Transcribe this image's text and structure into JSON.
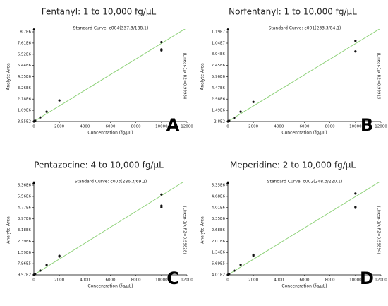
{
  "chart_data": [
    {
      "type": "scatter",
      "title": "Fentanyl: 1 to 10,000 fg/µL",
      "subtitle": "Standard Curve: c004(337.3/188.1)",
      "x_label": "Concentration (fg/µL)",
      "y_label": "Analyte Area",
      "annotation": "(Linear-1/x R2=0.99988)",
      "panel": "A",
      "xlim": [
        0,
        12000
      ],
      "xticks": [
        0,
        2000,
        4000,
        6000,
        8000,
        10000,
        12000
      ],
      "ylim": [
        355,
        8700000
      ],
      "yticks": [
        {
          "value": 355,
          "label": "3.55E2"
        },
        {
          "value": 1090000,
          "label": "1.09E6"
        },
        {
          "value": 2180000,
          "label": "2.18E6"
        },
        {
          "value": 3260000,
          "label": "3.26E6"
        },
        {
          "value": 4350000,
          "label": "4.35E6"
        },
        {
          "value": 5440000,
          "label": "5.44E6"
        },
        {
          "value": 6520000,
          "label": "6.52E6"
        },
        {
          "value": 7610000,
          "label": "7.61E6"
        },
        {
          "value": 8700000,
          "label": "8.7E6"
        }
      ],
      "points": {
        "color": "#111111",
        "x": [
          10,
          50,
          100,
          500,
          1000,
          2000,
          10000,
          10000,
          10000
        ],
        "y": [
          8000,
          40000,
          80000,
          400000,
          950000,
          2050000,
          7700000,
          7000000,
          6900000
        ]
      },
      "fit": {
        "color": "#8fd27a",
        "x": [
          0,
          12000
        ],
        "y": [
          0,
          9100000
        ]
      }
    },
    {
      "type": "scatter",
      "title": "Norfentanyl: 1 to 10,000 fg/µL",
      "subtitle": "Standard Curve: c001(233.3/84.1)",
      "x_label": "Concentration (fg/µL)",
      "y_label": "Analyte Area",
      "annotation": "(Linear-1/x R2=0.99915)",
      "panel": "B",
      "xlim": [
        0,
        12000
      ],
      "xticks": [
        0,
        2000,
        4000,
        6000,
        8000,
        10000,
        12000
      ],
      "ylim": [
        280,
        11900000
      ],
      "yticks": [
        {
          "value": 280,
          "label": "2.8E2"
        },
        {
          "value": 1490000,
          "label": "1.49E6"
        },
        {
          "value": 2980000,
          "label": "2.98E6"
        },
        {
          "value": 4470000,
          "label": "4.47E6"
        },
        {
          "value": 5960000,
          "label": "5.96E6"
        },
        {
          "value": 7450000,
          "label": "7.45E6"
        },
        {
          "value": 8940000,
          "label": "8.94E6"
        },
        {
          "value": 10400000,
          "label": "1.04E7"
        },
        {
          "value": 11900000,
          "label": "1.19E7"
        }
      ],
      "points": {
        "color": "#111111",
        "x": [
          10,
          50,
          100,
          500,
          1000,
          2000,
          10000,
          10000
        ],
        "y": [
          10000,
          50000,
          100000,
          500000,
          1300000,
          2600000,
          10700000,
          9300000
        ]
      },
      "fit": {
        "color": "#8fd27a",
        "x": [
          0,
          12000
        ],
        "y": [
          0,
          12400000
        ]
      }
    },
    {
      "type": "scatter",
      "title": "Pentazocine: 4 to 10,000 fg/µL",
      "subtitle": "Standard Curve: c003(286.3/69.1)",
      "x_label": "Concentration (fg/µL)",
      "y_label": "Analyte Area",
      "annotation": "(Linear-1/x R2=0.99828)",
      "panel": "C",
      "xlim": [
        0,
        12000
      ],
      "xticks": [
        0,
        2000,
        4000,
        6000,
        8000,
        10000,
        12000
      ],
      "ylim": [
        957,
        6360000
      ],
      "yticks": [
        {
          "value": 957,
          "label": "9.57E2"
        },
        {
          "value": 796000,
          "label": "7.96E5"
        },
        {
          "value": 1590000,
          "label": "1.59E6"
        },
        {
          "value": 2390000,
          "label": "2.39E6"
        },
        {
          "value": 3180000,
          "label": "3.18E6"
        },
        {
          "value": 3970000,
          "label": "3.97E6"
        },
        {
          "value": 4770000,
          "label": "4.77E6"
        },
        {
          "value": 5560000,
          "label": "5.56E6"
        },
        {
          "value": 6360000,
          "label": "6.36E6"
        }
      ],
      "points": {
        "color": "#111111",
        "x": [
          10,
          50,
          100,
          500,
          1000,
          2000,
          2000,
          10000,
          10000,
          10000
        ],
        "y": [
          6000,
          30000,
          60000,
          300000,
          700000,
          1300000,
          1350000,
          5700000,
          4900000,
          4800000
        ]
      },
      "fit": {
        "color": "#8fd27a",
        "x": [
          0,
          12000
        ],
        "y": [
          0,
          6750000
        ]
      }
    },
    {
      "type": "scatter",
      "title": "Meperidine: 2 to 10,000 fg/µL",
      "subtitle": "Standard Curve: c002(248.3/220.1)",
      "x_label": "Concentration (fg/µL)",
      "y_label": "Analyte Area",
      "annotation": "(Linear-1/x R2=0.99894)",
      "panel": "D",
      "xlim": [
        0,
        12000
      ],
      "xticks": [
        0,
        2000,
        4000,
        6000,
        8000,
        10000,
        12000
      ],
      "ylim": [
        401,
        5350000
      ],
      "yticks": [
        {
          "value": 401,
          "label": "4.01E2"
        },
        {
          "value": 669000,
          "label": "6.69E5"
        },
        {
          "value": 1340000,
          "label": "1.34E6"
        },
        {
          "value": 2010000,
          "label": "2.01E6"
        },
        {
          "value": 2680000,
          "label": "2.68E6"
        },
        {
          "value": 3350000,
          "label": "3.35E6"
        },
        {
          "value": 4010000,
          "label": "4.01E6"
        },
        {
          "value": 4680000,
          "label": "4.68E6"
        },
        {
          "value": 5350000,
          "label": "5.35E6"
        }
      ],
      "points": {
        "color": "#111111",
        "x": [
          10,
          50,
          100,
          500,
          1000,
          2000,
          2000,
          10000,
          10000,
          10000
        ],
        "y": [
          5000,
          25000,
          50000,
          250000,
          600000,
          1150000,
          1200000,
          4850000,
          4050000,
          4000000
        ]
      },
      "fit": {
        "color": "#8fd27a",
        "x": [
          0,
          12000
        ],
        "y": [
          0,
          5600000
        ]
      }
    }
  ]
}
